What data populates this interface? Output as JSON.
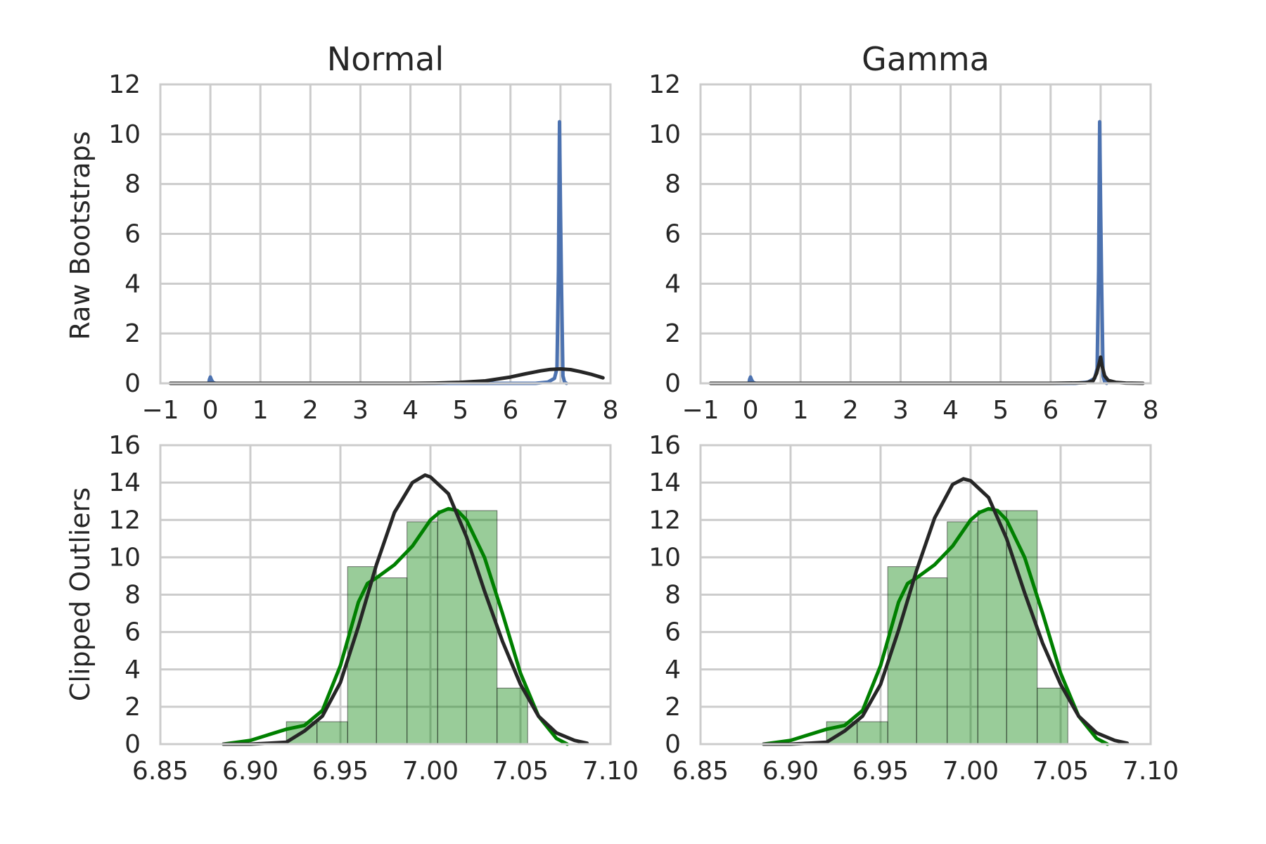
{
  "chart_data": [
    {
      "type": "line",
      "title": "Normal",
      "ylabel": "Raw Bootstraps",
      "xlim": [
        -1,
        8
      ],
      "ylim": [
        0,
        12
      ],
      "xticks": [
        "−1",
        "0",
        "1",
        "2",
        "3",
        "4",
        "5",
        "6",
        "7",
        "8"
      ],
      "yticks": [
        "0",
        "2",
        "4",
        "6",
        "8",
        "10",
        "12"
      ],
      "grid": true,
      "series": [
        {
          "color": "#4c72b0",
          "x": [
            -0.03,
            -0.02,
            0,
            0.02,
            0.05,
            0.1,
            6.5,
            6.75,
            6.88,
            6.93,
            6.96,
            6.98,
            7.0,
            7.02,
            7.05,
            7.08,
            7.12
          ],
          "y": [
            0,
            0.15,
            0.25,
            0.15,
            0.04,
            0,
            0,
            0.05,
            0.2,
            0.6,
            4.5,
            10.5,
            7.0,
            4.0,
            0.3,
            0.05,
            0
          ]
        },
        {
          "color": "#262626",
          "x": [
            -0.8,
            0,
            1,
            2,
            3,
            4,
            4.5,
            5,
            5.5,
            6,
            6.3,
            6.6,
            6.8,
            7,
            7.2,
            7.4,
            7.6,
            7.85
          ],
          "y": [
            0,
            0,
            0,
            0,
            0,
            0,
            0.01,
            0.04,
            0.1,
            0.25,
            0.38,
            0.5,
            0.56,
            0.58,
            0.55,
            0.47,
            0.37,
            0.22
          ]
        }
      ]
    },
    {
      "type": "line",
      "title": "Gamma",
      "ylabel": "",
      "xlim": [
        -1,
        8
      ],
      "ylim": [
        0,
        12
      ],
      "xticks": [
        "−1",
        "0",
        "1",
        "2",
        "3",
        "4",
        "5",
        "6",
        "7",
        "8"
      ],
      "yticks": [
        "0",
        "2",
        "4",
        "6",
        "8",
        "10",
        "12"
      ],
      "grid": true,
      "series": [
        {
          "color": "#4c72b0",
          "x": [
            -0.03,
            -0.02,
            0,
            0.02,
            0.05,
            0.1,
            6.5,
            6.75,
            6.88,
            6.93,
            6.96,
            6.98,
            7.0,
            7.02,
            7.05,
            7.08,
            7.12
          ],
          "y": [
            0,
            0.15,
            0.25,
            0.15,
            0.04,
            0,
            0,
            0.05,
            0.2,
            0.6,
            4.5,
            10.5,
            7.0,
            4.0,
            0.3,
            0.05,
            0
          ]
        },
        {
          "color": "#262626",
          "x": [
            -0.8,
            0,
            2,
            4,
            6,
            6.7,
            6.85,
            6.92,
            6.97,
            7.0,
            7.03,
            7.08,
            7.15,
            7.3,
            7.5,
            7.85
          ],
          "y": [
            0,
            0,
            0,
            0,
            0,
            0.02,
            0.1,
            0.4,
            0.8,
            1.05,
            0.7,
            0.3,
            0.12,
            0.04,
            0.01,
            0
          ]
        }
      ]
    },
    {
      "type": "bar",
      "title": "",
      "ylabel": "Clipped Outliers",
      "xlim": [
        6.85,
        7.1
      ],
      "ylim": [
        0,
        16
      ],
      "xticks": [
        "6.85",
        "6.90",
        "6.95",
        "7.00",
        "7.05",
        "7.10"
      ],
      "yticks": [
        "0",
        "2",
        "4",
        "6",
        "8",
        "10",
        "12",
        "14",
        "16"
      ],
      "grid": true,
      "hist_color": "#008000",
      "bins": [
        {
          "x0": 6.92,
          "x1": 6.937,
          "value": 1.2
        },
        {
          "x0": 6.937,
          "x1": 6.954,
          "value": 1.2
        },
        {
          "x0": 6.954,
          "x1": 6.97,
          "value": 9.5
        },
        {
          "x0": 6.97,
          "x1": 6.987,
          "value": 8.9
        },
        {
          "x0": 6.987,
          "x1": 7.004,
          "value": 11.9
        },
        {
          "x0": 7.004,
          "x1": 7.02,
          "value": 12.5
        },
        {
          "x0": 7.02,
          "x1": 7.037,
          "value": 12.5
        },
        {
          "x0": 7.037,
          "x1": 7.054,
          "value": 3.0
        }
      ],
      "series": [
        {
          "color": "#008000",
          "x": [
            6.885,
            6.9,
            6.91,
            6.92,
            6.93,
            6.94,
            6.95,
            6.96,
            6.965,
            6.97,
            6.98,
            6.99,
            7.0,
            7.005,
            7.01,
            7.015,
            7.02,
            7.03,
            7.04,
            7.05,
            7.06,
            7.07,
            7.076
          ],
          "y": [
            0,
            0.2,
            0.5,
            0.8,
            1.0,
            1.8,
            4.2,
            7.6,
            8.6,
            8.9,
            9.6,
            10.6,
            12.0,
            12.4,
            12.6,
            12.5,
            12.0,
            10.0,
            7.0,
            3.8,
            1.5,
            0.3,
            0
          ]
        },
        {
          "color": "#262626",
          "x": [
            6.885,
            6.9,
            6.91,
            6.92,
            6.93,
            6.94,
            6.95,
            6.96,
            6.97,
            6.98,
            6.99,
            6.997,
            7.0,
            7.01,
            7.02,
            7.03,
            7.04,
            7.05,
            7.06,
            7.07,
            7.08,
            7.087
          ],
          "y": [
            0,
            0,
            0.05,
            0.1,
            0.7,
            1.5,
            3.3,
            6.3,
            9.6,
            12.4,
            14.0,
            14.4,
            14.3,
            13.4,
            11.1,
            8.2,
            5.5,
            3.2,
            1.5,
            0.6,
            0.2,
            0.05
          ]
        }
      ]
    },
    {
      "type": "bar",
      "title": "",
      "ylabel": "",
      "xlim": [
        6.85,
        7.1
      ],
      "ylim": [
        0,
        16
      ],
      "xticks": [
        "6.85",
        "6.90",
        "6.95",
        "7.00",
        "7.05",
        "7.10"
      ],
      "yticks": [
        "0",
        "2",
        "4",
        "6",
        "8",
        "10",
        "12",
        "14",
        "16"
      ],
      "grid": true,
      "hist_color": "#008000",
      "bins": [
        {
          "x0": 6.92,
          "x1": 6.937,
          "value": 1.2
        },
        {
          "x0": 6.937,
          "x1": 6.954,
          "value": 1.2
        },
        {
          "x0": 6.954,
          "x1": 6.97,
          "value": 9.5
        },
        {
          "x0": 6.97,
          "x1": 6.987,
          "value": 8.9
        },
        {
          "x0": 6.987,
          "x1": 7.004,
          "value": 11.9
        },
        {
          "x0": 7.004,
          "x1": 7.02,
          "value": 12.5
        },
        {
          "x0": 7.02,
          "x1": 7.037,
          "value": 12.5
        },
        {
          "x0": 7.037,
          "x1": 7.054,
          "value": 3.0
        }
      ],
      "series": [
        {
          "color": "#008000",
          "x": [
            6.885,
            6.9,
            6.91,
            6.92,
            6.93,
            6.94,
            6.95,
            6.96,
            6.965,
            6.97,
            6.98,
            6.99,
            7.0,
            7.005,
            7.01,
            7.015,
            7.02,
            7.03,
            7.04,
            7.05,
            7.06,
            7.07,
            7.076
          ],
          "y": [
            0,
            0.2,
            0.5,
            0.8,
            1.0,
            1.8,
            4.2,
            7.6,
            8.6,
            8.9,
            9.6,
            10.6,
            12.0,
            12.4,
            12.6,
            12.5,
            12.0,
            10.0,
            7.0,
            3.8,
            1.5,
            0.3,
            0
          ]
        },
        {
          "color": "#262626",
          "x": [
            6.885,
            6.9,
            6.91,
            6.92,
            6.93,
            6.94,
            6.95,
            6.96,
            6.97,
            6.98,
            6.99,
            6.996,
            7.0,
            7.01,
            7.02,
            7.03,
            7.04,
            7.05,
            7.06,
            7.07,
            7.08,
            7.087
          ],
          "y": [
            0,
            0,
            0.05,
            0.1,
            0.7,
            1.5,
            3.2,
            6.1,
            9.3,
            12.1,
            13.9,
            14.2,
            14.1,
            13.2,
            11.0,
            8.1,
            5.4,
            3.2,
            1.5,
            0.6,
            0.2,
            0.05
          ]
        }
      ]
    }
  ]
}
